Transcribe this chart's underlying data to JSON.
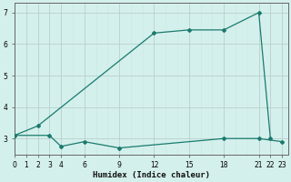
{
  "line1_x": [
    0,
    2,
    12,
    15,
    18,
    21,
    22
  ],
  "line1_y": [
    3.1,
    3.4,
    6.35,
    6.45,
    6.45,
    7.0,
    3.0
  ],
  "line2_x": [
    0,
    3,
    4,
    6,
    9,
    18,
    21,
    23
  ],
  "line2_y": [
    3.1,
    3.1,
    2.75,
    2.9,
    2.7,
    3.0,
    3.0,
    2.9
  ],
  "line_color": "#1a7a6e",
  "bg_color": "#d4f0ec",
  "grid_minor_color": "#c8e8e0",
  "grid_major_color": "#b8d0cc",
  "xlabel": "Humidex (Indice chaleur)",
  "xlim": [
    0,
    23.5
  ],
  "ylim": [
    2.5,
    7.3
  ],
  "xticks": [
    0,
    1,
    2,
    3,
    4,
    6,
    9,
    12,
    15,
    18,
    21,
    22,
    23
  ],
  "yticks": [
    3,
    4,
    5,
    6,
    7
  ],
  "marker": "D",
  "markersize": 2.0,
  "linewidth": 0.9
}
